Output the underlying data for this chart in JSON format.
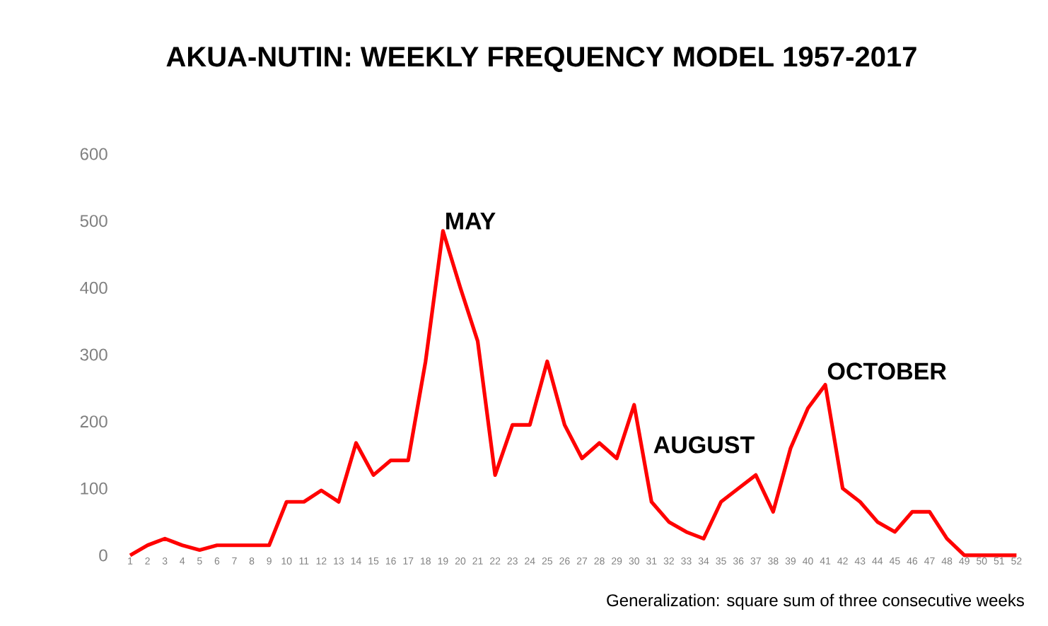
{
  "chart_data": {
    "type": "line",
    "title": "AKUA-NUTIN: WEEKLY FREQUENCY MODEL 1957-2017",
    "categories": [
      "1",
      "2",
      "3",
      "4",
      "5",
      "6",
      "7",
      "8",
      "9",
      "10",
      "11",
      "12",
      "13",
      "14",
      "15",
      "16",
      "17",
      "18",
      "19",
      "20",
      "21",
      "22",
      "23",
      "24",
      "25",
      "26",
      "27",
      "28",
      "29",
      "30",
      "31",
      "32",
      "33",
      "34",
      "35",
      "36",
      "37",
      "38",
      "39",
      "40",
      "41",
      "42",
      "43",
      "44",
      "45",
      "46",
      "47",
      "48",
      "49",
      "50",
      "51",
      "52"
    ],
    "values": [
      0,
      15,
      25,
      15,
      8,
      15,
      15,
      15,
      15,
      80,
      80,
      97,
      80,
      168,
      120,
      142,
      142,
      290,
      485,
      400,
      320,
      120,
      195,
      195,
      290,
      195,
      145,
      168,
      145,
      225,
      80,
      50,
      35,
      25,
      80,
      100,
      120,
      65,
      160,
      220,
      255,
      100,
      80,
      50,
      35,
      65,
      65,
      25,
      0,
      0,
      0,
      0
    ],
    "color": "#ff0000",
    "ylim": [
      0,
      600
    ],
    "yticks": [
      0,
      100,
      200,
      300,
      400,
      500,
      600
    ],
    "grid": false,
    "marker": "none",
    "line_style": "solid",
    "annotations": [
      {
        "text": "MAY",
        "x": "19",
        "y": 485
      },
      {
        "text": "AUGUST",
        "x": "31",
        "y": 150
      },
      {
        "text": "OCTOBER",
        "x": "41",
        "y": 260
      },
      "Generalization: square sum of three consecutive weeks"
    ]
  }
}
